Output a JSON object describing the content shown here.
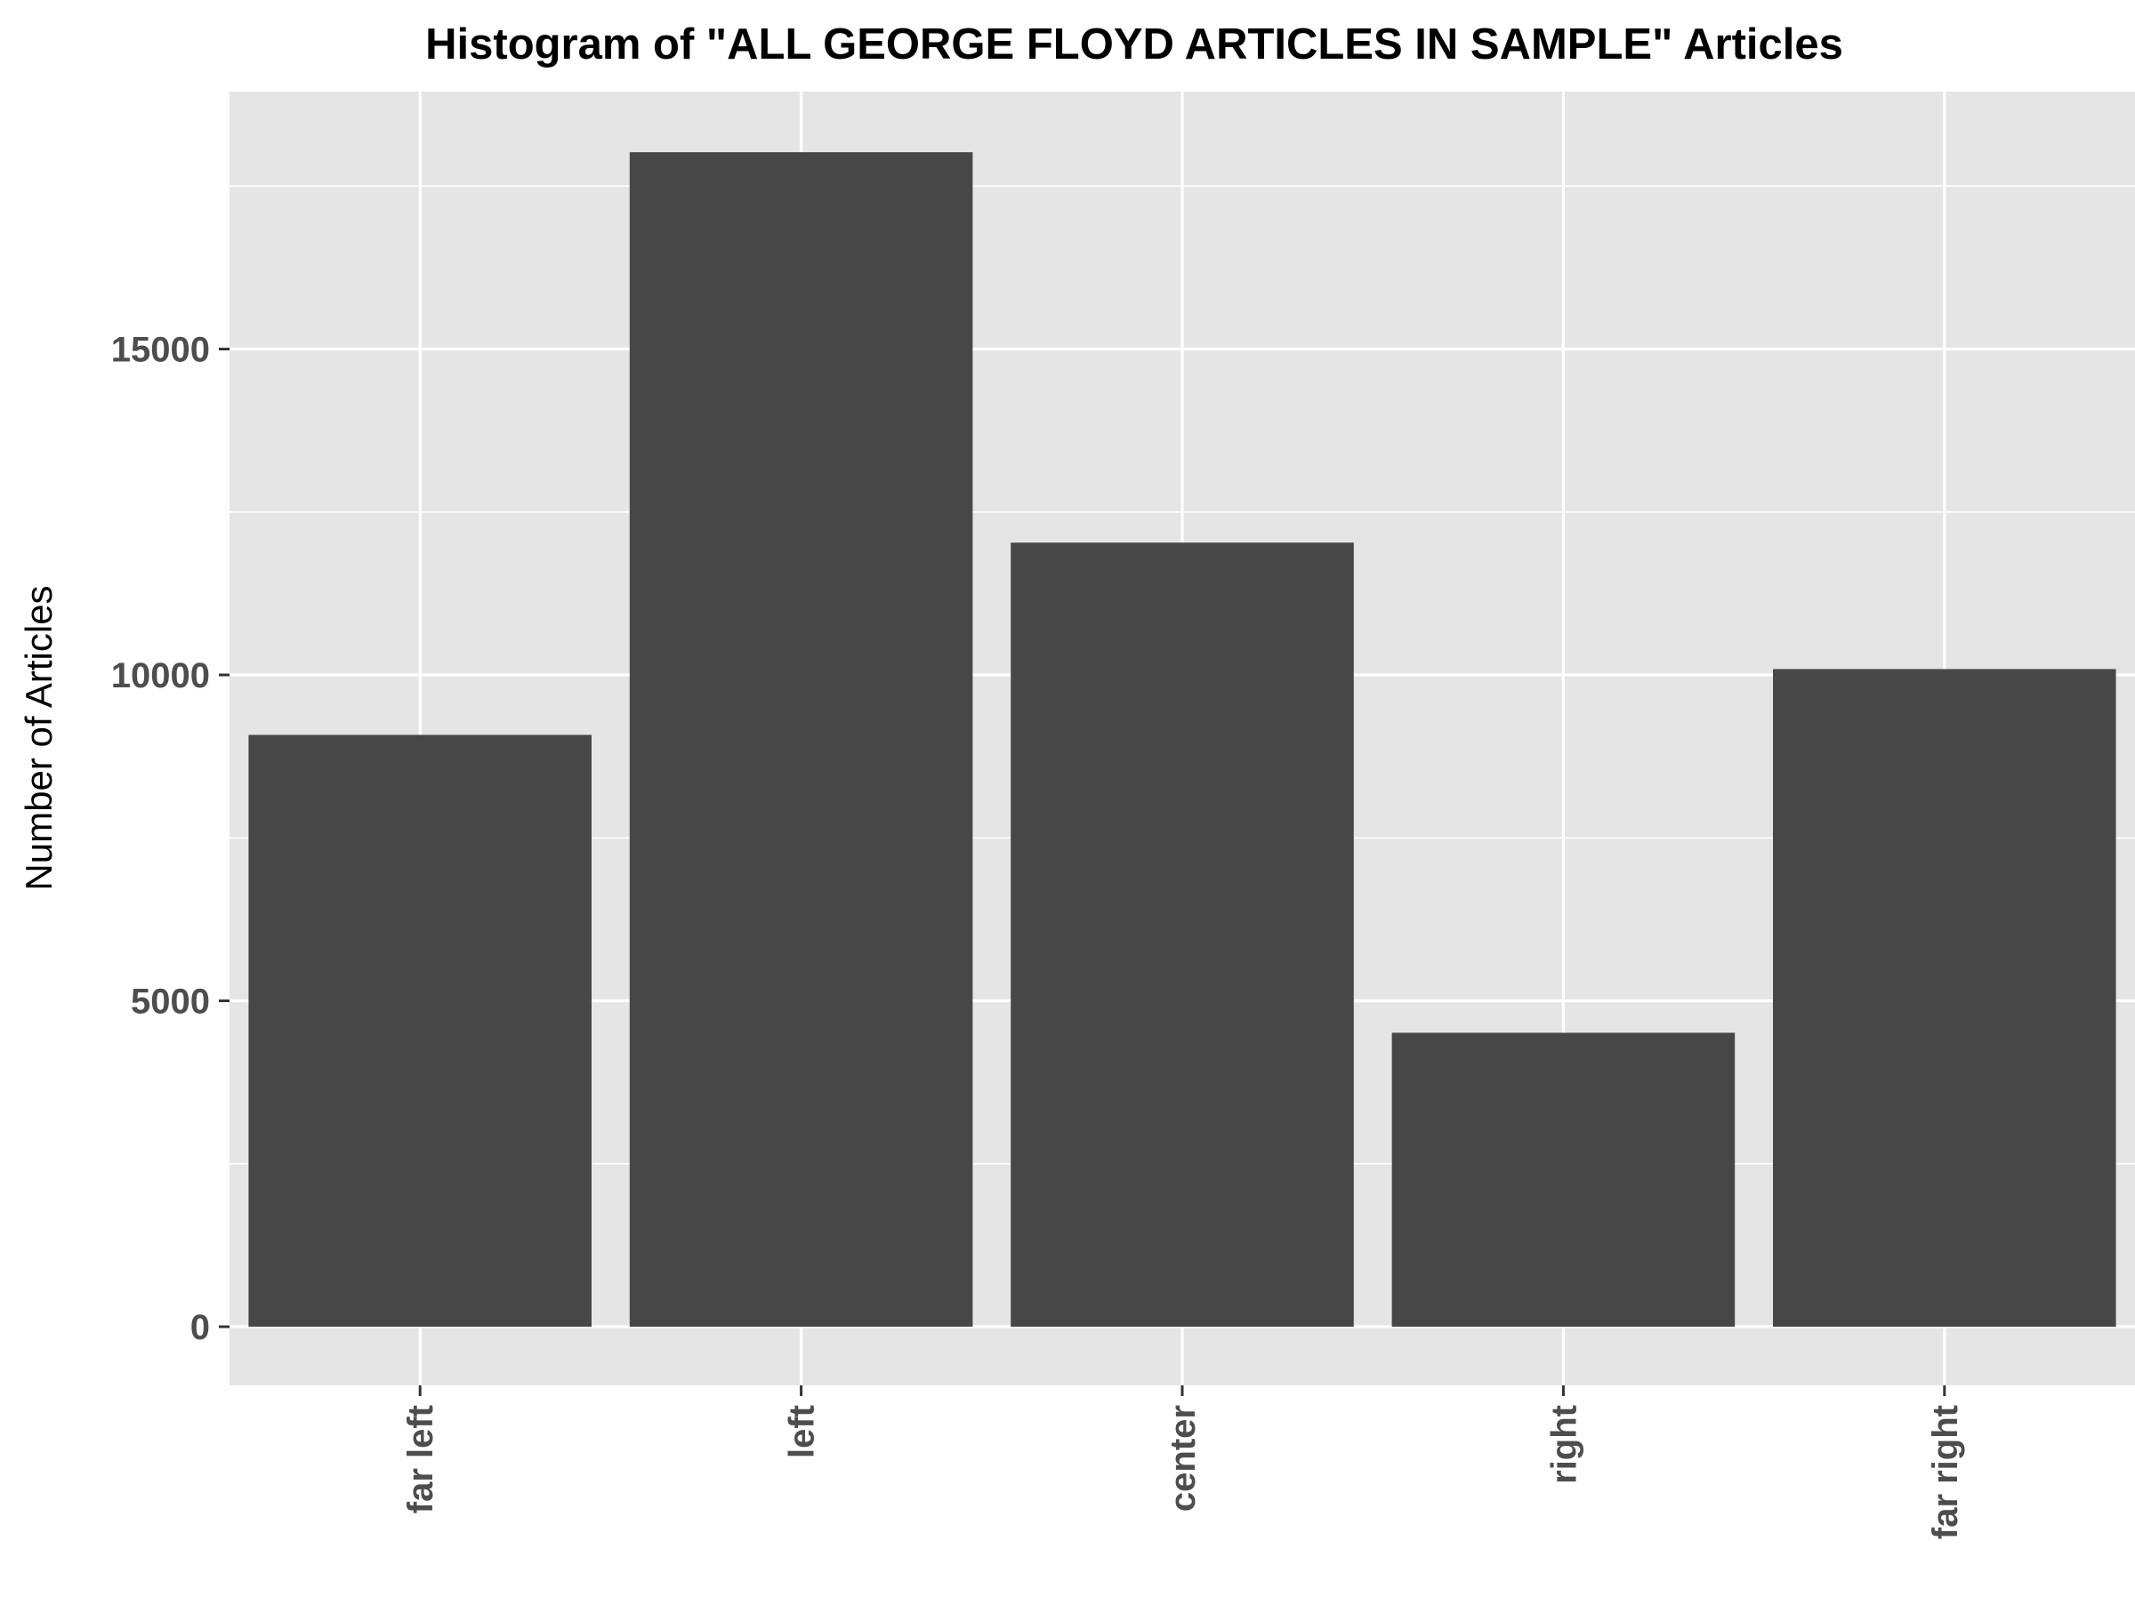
{
  "chart_data": {
    "type": "bar",
    "title": "Histogram of \"ALL GEORGE FLOYD ARTICLES IN SAMPLE\" Articles",
    "xlabel": "",
    "ylabel": "Number of Articles",
    "categories": [
      "far left",
      "left",
      "center",
      "right",
      "far right"
    ],
    "values": [
      9080,
      18020,
      12030,
      4510,
      10090
    ],
    "ylim": [
      -900,
      18950
    ],
    "yticks": [
      0,
      5000,
      10000,
      15000
    ],
    "ytick_labels": [
      "0",
      "5000",
      "10000",
      "15000"
    ],
    "grid": true,
    "colors": {
      "panel": "#e5e5e5",
      "bar": "#474747",
      "grid": "#ffffff",
      "tick_text": "#4d4d4d"
    }
  }
}
